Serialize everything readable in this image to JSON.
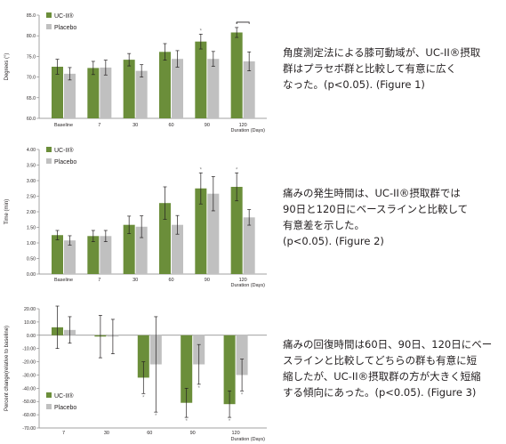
{
  "colors": {
    "uc": "#6b8e3a",
    "placebo": "#c0c0c0",
    "text": "#231f20",
    "grid": "#d9d9d9"
  },
  "chart_data": [
    {
      "type": "bar",
      "ylabel": "Degrees (°)",
      "xlabel": "Duration (Days)",
      "ylim": [
        60,
        85
      ],
      "yticks": [
        "85.0",
        "80.0",
        "75.0",
        "70.0",
        "65.0",
        "60.0"
      ],
      "ytick_values": [
        85,
        80,
        75,
        70,
        65,
        60
      ],
      "categories": [
        "Baseline",
        "7",
        "30",
        "60",
        "90",
        "120"
      ],
      "legend": "top-left",
      "series": [
        {
          "name": "UC-II®",
          "values": [
            72.5,
            72.2,
            74.2,
            76.1,
            78.6,
            80.8
          ],
          "errors": [
            1.8,
            1.6,
            1.5,
            2.0,
            1.8,
            1.2
          ]
        },
        {
          "name": "Placebo",
          "values": [
            70.8,
            72.3,
            71.5,
            74.4,
            74.4,
            73.8
          ],
          "errors": [
            1.5,
            1.8,
            1.5,
            2.0,
            1.8,
            2.3
          ]
        }
      ],
      "significance_marks": [
        "",
        "",
        "",
        "",
        "*",
        "*"
      ],
      "bracket_on": "120"
    },
    {
      "type": "bar",
      "ylabel": "Time (min)",
      "xlabel": "Duration (Days)",
      "ylim": [
        0,
        4
      ],
      "yticks": [
        "4.00",
        "3.50",
        "3.00",
        "2.50",
        "2.00",
        "1.50",
        "1.00",
        "0.50",
        "0.00"
      ],
      "ytick_values": [
        4,
        3.5,
        3,
        2.5,
        2,
        1.5,
        1,
        0.5,
        0
      ],
      "categories": [
        "Baseline",
        "7",
        "30",
        "60",
        "90",
        "120"
      ],
      "legend": "top-left",
      "series": [
        {
          "name": "UC-II®",
          "values": [
            1.25,
            1.22,
            1.58,
            2.28,
            2.75,
            2.8
          ],
          "errors": [
            0.15,
            0.18,
            0.28,
            0.52,
            0.5,
            0.45
          ]
        },
        {
          "name": "Placebo",
          "values": [
            1.08,
            1.22,
            1.52,
            1.58,
            2.58,
            1.82
          ],
          "errors": [
            0.15,
            0.18,
            0.35,
            0.3,
            0.55,
            0.25
          ]
        }
      ],
      "significance_marks": [
        "",
        "",
        "",
        "",
        "*",
        "*"
      ]
    },
    {
      "type": "bar",
      "ylabel": "Percent change(relative to baseline)",
      "xlabel": "Duration (Days)",
      "ylim": [
        -70,
        20
      ],
      "yticks": [
        "20.00",
        "10.00",
        "0.00",
        "-10.00",
        "-20.00",
        "-30.00",
        "-40.00",
        "-50.00",
        "-60.00",
        "-70.00"
      ],
      "ytick_values": [
        20,
        10,
        0,
        -10,
        -20,
        -30,
        -40,
        -50,
        -60,
        -70
      ],
      "categories": [
        "7",
        "30",
        "60",
        "90",
        "120"
      ],
      "legend": "bottom-left",
      "series": [
        {
          "name": "UC-II®",
          "values": [
            6,
            -1,
            -32,
            -51,
            -52
          ],
          "errors": [
            16,
            16,
            12,
            11,
            10
          ]
        },
        {
          "name": "Placebo",
          "values": [
            4,
            -1,
            -22,
            -22,
            -30
          ],
          "errors": [
            10,
            13,
            36,
            15,
            12
          ]
        }
      ],
      "significance_marks": [
        "",
        "",
        "*",
        "*",
        "*"
      ]
    }
  ],
  "descriptions": [
    {
      "text": "角度測定法による膝可動域が、UC-II®摂取\n群はプラセボ群と比較して有意に広く\nなった。(p<0.05). (Figure 1)"
    },
    {
      "text": "痛みの発生時間は、UC-II®摂取群では\n90日と120日にベースラインと比較して\n有意差を示した。\n(p<0.05). (Figure 2)"
    },
    {
      "text": "痛みの回復時間は60日、90日、120日にベー\nスラインと比較してどちらの群も有意に短\n縮したが、UC-II®摂取群の方が大きく短縮\nする傾向にあった。(p<0.05). (Figure 3)"
    }
  ]
}
